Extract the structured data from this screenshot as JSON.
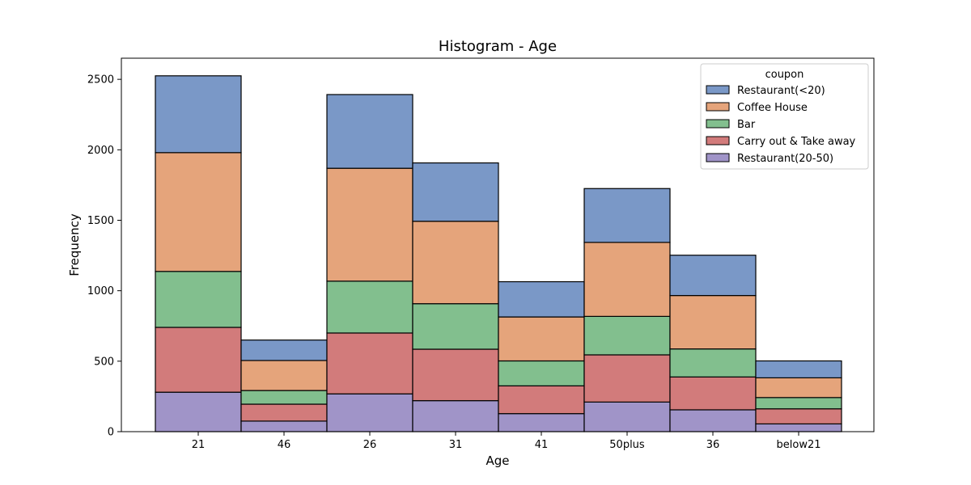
{
  "chart_data": {
    "type": "bar",
    "stacked": true,
    "title": "Histogram - Age",
    "xlabel": "Age",
    "ylabel": "Frequency",
    "ylim": [
      0,
      2650
    ],
    "yticks": [
      0,
      500,
      1000,
      1500,
      2000,
      2500
    ],
    "categories": [
      "21",
      "46",
      "26",
      "31",
      "41",
      "50plus",
      "36",
      "below21"
    ],
    "legend": {
      "title": "coupon",
      "placement": "top-right"
    },
    "series": [
      {
        "name": "Restaurant(20-50)",
        "color": "#a094c8",
        "values": [
          280,
          75,
          268,
          220,
          128,
          210,
          155,
          55
        ]
      },
      {
        "name": "Carry out & Take away",
        "color": "#d27b7b",
        "values": [
          460,
          120,
          432,
          365,
          197,
          335,
          233,
          107
        ]
      },
      {
        "name": "Bar",
        "color": "#82bf8e",
        "values": [
          397,
          97,
          368,
          323,
          177,
          273,
          199,
          80
        ]
      },
      {
        "name": "Coffee House",
        "color": "#e5a47b",
        "values": [
          843,
          213,
          801,
          585,
          312,
          525,
          379,
          140
        ]
      },
      {
        "name": "Restaurant(<20)",
        "color": "#7a98c7",
        "values": [
          545,
          145,
          523,
          414,
          250,
          382,
          286,
          120
        ]
      }
    ]
  }
}
